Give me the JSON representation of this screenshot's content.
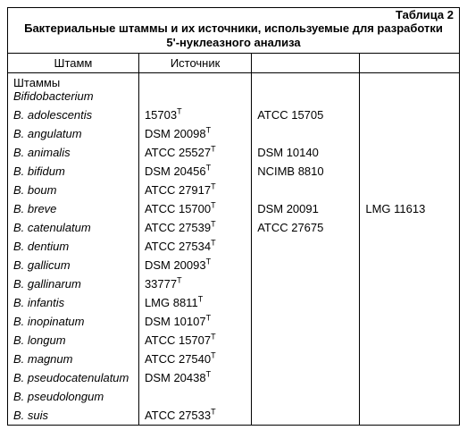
{
  "header": {
    "table_label": "Таблица 2",
    "title_line1": "Бактериальные штаммы и их источники, используемые для разработки",
    "title_line2": "5'-нуклеазного анализа"
  },
  "columns": {
    "c1": "Штамм",
    "c2": "Источник",
    "c3": "",
    "c4": ""
  },
  "section": "Штаммы Bifidobacterium",
  "rows": [
    {
      "sp": "B. adolescentis",
      "src": "15703",
      "src_sup": "T",
      "c3": "ATCC 15705",
      "c4": ""
    },
    {
      "sp": "B. angulatum",
      "src": "DSM 20098",
      "src_sup": "T",
      "c3": "",
      "c4": ""
    },
    {
      "sp": "B. animalis",
      "src": "ATCC 25527",
      "src_sup": "T",
      "c3": "DSM 10140",
      "c4": ""
    },
    {
      "sp": "B. bifidum",
      "src": "DSM 20456",
      "src_sup": "T",
      "c3": "NCIMB 8810",
      "c4": ""
    },
    {
      "sp": "B. boum",
      "src": "ATCC 27917",
      "src_sup": "T",
      "c3": "",
      "c4": ""
    },
    {
      "sp": "B. breve",
      "src": "ATCC 15700",
      "src_sup": "T",
      "c3": "DSM 20091",
      "c4": "LMG 11613"
    },
    {
      "sp": "B. catenulatum",
      "src": "ATCC 27539",
      "src_sup": "T",
      "c3": "ATCC 27675",
      "c4": ""
    },
    {
      "sp": "B. dentium",
      "src": "ATCC 27534",
      "src_sup": "T",
      "c3": "",
      "c4": ""
    },
    {
      "sp": "B. gallicum",
      "src": "DSM 20093",
      "src_sup": "T",
      "c3": "",
      "c4": ""
    },
    {
      "sp": "B. gallinarum",
      "src": "33777",
      "src_sup": "T",
      "c3": "",
      "c4": ""
    },
    {
      "sp": "B. infantis",
      "src": "LMG 8811",
      "src_sup": "T",
      "c3": "",
      "c4": ""
    },
    {
      "sp": "B. inopinatum",
      "src": "DSM 10107",
      "src_sup": "T",
      "c3": "",
      "c4": ""
    },
    {
      "sp": "B. longum",
      "src": "ATCC 15707",
      "src_sup": "T",
      "c3": "",
      "c4": ""
    },
    {
      "sp": "B. magnum",
      "src": "ATCC 27540",
      "src_sup": "T",
      "c3": "",
      "c4": ""
    },
    {
      "sp": "B. pseudocatenulatum",
      "src": "DSM 20438",
      "src_sup": "T",
      "c3": "",
      "c4": ""
    },
    {
      "sp": "B. pseudolongum",
      "src": "",
      "src_sup": "",
      "c3": "",
      "c4": ""
    },
    {
      "sp": "B. suis",
      "src": "ATCC 27533",
      "src_sup": "T",
      "c3": "",
      "c4": ""
    }
  ]
}
